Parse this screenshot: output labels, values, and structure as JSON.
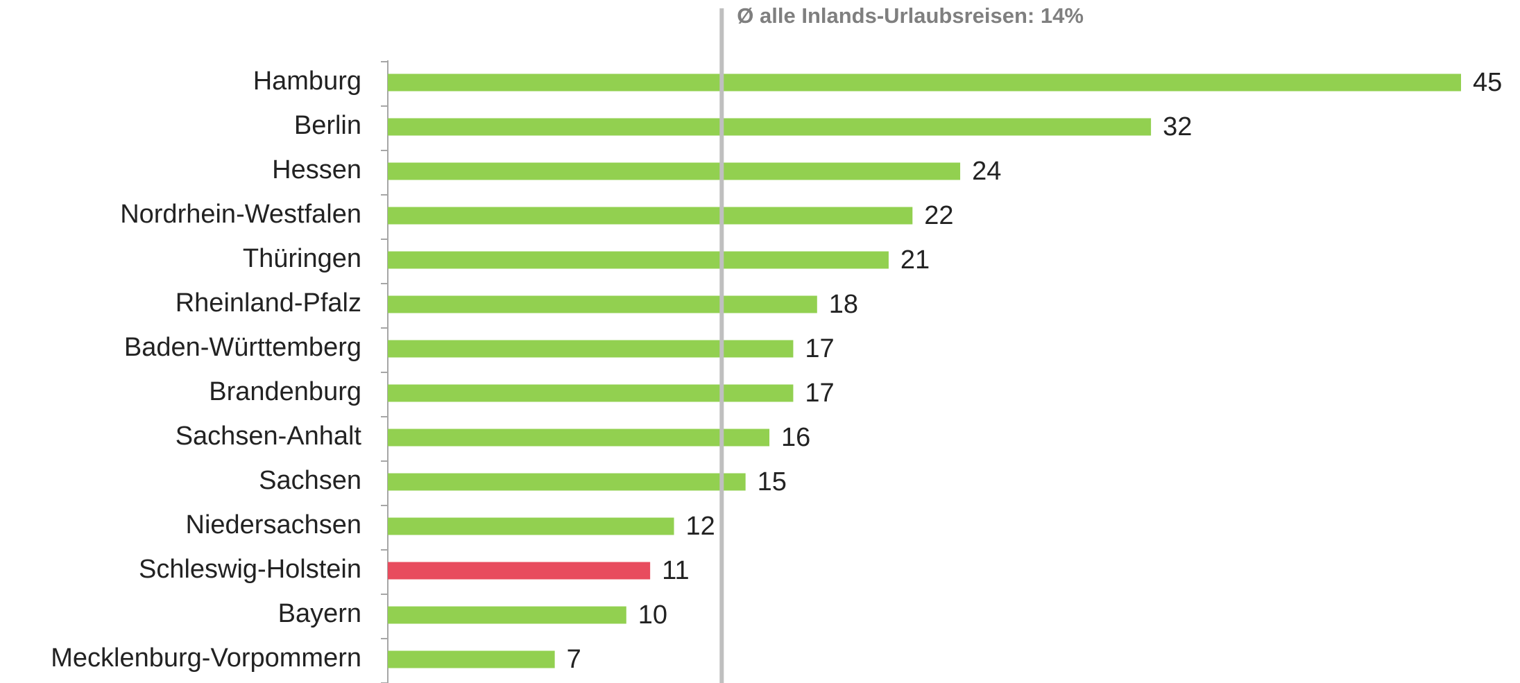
{
  "chart_data": {
    "type": "barh",
    "categories": [
      "Hamburg",
      "Berlin",
      "Hessen",
      "Nordrhein-Westfalen",
      "Thüringen",
      "Rheinland-Pfalz",
      "Baden-Württemberg",
      "Brandenburg",
      "Sachsen-Anhalt",
      "Sachsen",
      "Niedersachsen",
      "Schleswig-Holstein",
      "Bayern",
      "Mecklenburg-Vorpommern"
    ],
    "values": [
      45,
      32,
      24,
      22,
      21,
      18,
      17,
      17,
      16,
      15,
      12,
      11,
      10,
      7
    ],
    "colors": [
      "#92d050",
      "#92d050",
      "#92d050",
      "#92d050",
      "#92d050",
      "#92d050",
      "#92d050",
      "#92d050",
      "#92d050",
      "#92d050",
      "#92d050",
      "#e84c5e",
      "#92d050",
      "#92d050"
    ],
    "xlim": [
      0,
      45
    ],
    "reference": {
      "value": 14,
      "label": "Ø alle Inlands-Urlaubsreisen: 14%",
      "color": "#bfbfbf"
    }
  }
}
